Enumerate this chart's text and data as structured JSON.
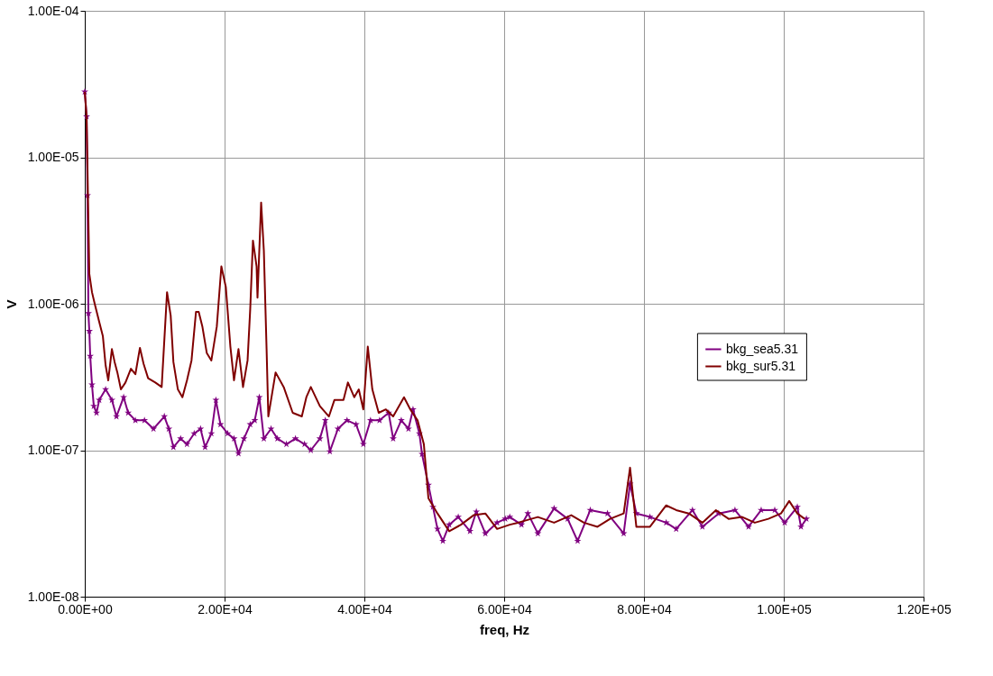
{
  "chart_data": {
    "type": "line",
    "xlabel": "freq, Hz",
    "ylabel": "V",
    "log": "y",
    "grid": true,
    "legend": "right",
    "line_style": "solid",
    "xlim": [
      0,
      120000
    ],
    "xticks": [
      {
        "value": 0,
        "label": "0.00E+00"
      },
      {
        "value": 20000,
        "label": "2.00E+04"
      },
      {
        "value": 40000,
        "label": "4.00E+04"
      },
      {
        "value": 60000,
        "label": "6.00E+04"
      },
      {
        "value": 80000,
        "label": "8.00E+04"
      },
      {
        "value": 100000,
        "label": "1.00E+05"
      },
      {
        "value": 120000,
        "label": "1.20E+05"
      }
    ],
    "ylim": [
      1e-08,
      0.0001
    ],
    "yticks": [
      {
        "value": 1e-08,
        "label": "1.00E-08"
      },
      {
        "value": 1e-07,
        "label": "1.00E-07"
      },
      {
        "value": 1e-06,
        "label": "1.00E-06"
      },
      {
        "value": 1e-05,
        "label": "1.00E-05"
      },
      {
        "value": 0.0001,
        "label": "1.00E-04"
      }
    ],
    "series": [
      {
        "name": "bkg_sea5.31",
        "color": "#800080",
        "marker": "star",
        "x": [
          0,
          260,
          390,
          520,
          650,
          780,
          1030,
          1290,
          1680,
          2070,
          2980,
          3880,
          4530,
          5560,
          6210,
          7240,
          8540,
          9830,
          11380,
          12030,
          12680,
          13710,
          14620,
          15650,
          16560,
          17210,
          18110,
          18760,
          19410,
          20440,
          21350,
          21990,
          22770,
          23670,
          24320,
          24970,
          25620,
          26650,
          27560,
          28850,
          30140,
          31440,
          32340,
          33640,
          34410,
          35060,
          36220,
          37520,
          38810,
          39850,
          40880,
          42170,
          43470,
          44120,
          45280,
          46310,
          46960,
          47870,
          48250,
          49160,
          49810,
          50460,
          51230,
          52140,
          53430,
          55110,
          56020,
          57310,
          58990,
          60160,
          60800,
          62480,
          63390,
          64820,
          67140,
          69080,
          70510,
          72320,
          74780,
          77100,
          78010,
          78910,
          80860,
          83180,
          84610,
          86940,
          88360,
          90690,
          93020,
          94960,
          96770,
          98710,
          100130,
          101940,
          102460,
          103240
        ],
        "values": [
          2.8e-05,
          1.9e-05,
          5.5e-06,
          8.6e-07,
          6.5e-07,
          4.4e-07,
          2.8e-07,
          2e-07,
          1.8e-07,
          2.2e-07,
          2.6e-07,
          2.2e-07,
          1.7e-07,
          2.3e-07,
          1.8e-07,
          1.6e-07,
          1.6e-07,
          1.4e-07,
          1.7e-07,
          1.4e-07,
          1.05e-07,
          1.2e-07,
          1.1e-07,
          1.3e-07,
          1.4e-07,
          1.05e-07,
          1.3e-07,
          2.2e-07,
          1.5e-07,
          1.3e-07,
          1.2e-07,
          9.5e-08,
          1.2e-07,
          1.5e-07,
          1.6e-07,
          2.3e-07,
          1.2e-07,
          1.4e-07,
          1.2e-07,
          1.1e-07,
          1.2e-07,
          1.1e-07,
          1e-07,
          1.2e-07,
          1.6e-07,
          9.8e-08,
          1.4e-07,
          1.6e-07,
          1.5e-07,
          1.1e-07,
          1.6e-07,
          1.6e-07,
          1.8e-07,
          1.2e-07,
          1.6e-07,
          1.4e-07,
          1.9e-07,
          1.3e-07,
          9.4e-08,
          5.8e-08,
          4.1e-08,
          2.9e-08,
          2.4e-08,
          3.1e-08,
          3.5e-08,
          2.8e-08,
          3.8e-08,
          2.7e-08,
          3.2e-08,
          3.4e-08,
          3.5e-08,
          3.1e-08,
          3.7e-08,
          2.7e-08,
          4e-08,
          3.4e-08,
          2.4e-08,
          3.9e-08,
          3.7e-08,
          2.7e-08,
          5.9e-08,
          3.7e-08,
          3.5e-08,
          3.2e-08,
          2.9e-08,
          3.9e-08,
          3e-08,
          3.7e-08,
          3.9e-08,
          3e-08,
          3.9e-08,
          3.9e-08,
          3.2e-08,
          4.1e-08,
          3e-08,
          3.4e-08
        ]
      },
      {
        "name": "bkg_sur5.31",
        "color": "#800000",
        "marker": "none",
        "x": [
          0,
          260,
          650,
          1030,
          1420,
          2070,
          2590,
          2980,
          3360,
          3880,
          4270,
          4660,
          5170,
          5820,
          6600,
          7240,
          7890,
          8410,
          9060,
          10090,
          11000,
          11770,
          12290,
          12680,
          13320,
          13970,
          14620,
          15270,
          15910,
          16300,
          16820,
          17460,
          18110,
          18890,
          19540,
          20180,
          20830,
          21350,
          21990,
          22640,
          23290,
          23670,
          24060,
          24580,
          24710,
          25230,
          25620,
          26010,
          26260,
          27300,
          28460,
          29750,
          31050,
          31700,
          32340,
          33640,
          34930,
          35710,
          37010,
          37650,
          38550,
          39200,
          39850,
          40490,
          41140,
          42050,
          43080,
          44120,
          45670,
          46570,
          47610,
          48510,
          49160,
          50460,
          52140,
          53820,
          55630,
          57310,
          58990,
          60800,
          61970,
          64820,
          67140,
          69600,
          71410,
          73350,
          75160,
          77100,
          78010,
          78910,
          80860,
          83180,
          84610,
          86420,
          88360,
          90300,
          92110,
          94050,
          95860,
          97800,
          99610,
          100780,
          101940,
          102980
        ],
        "values": [
          2.8e-05,
          1.9e-05,
          1.6e-06,
          1.2e-06,
          1e-06,
          7.5e-07,
          6e-07,
          3.8e-07,
          3e-07,
          4.9e-07,
          4e-07,
          3.4e-07,
          2.6e-07,
          2.9e-07,
          3.6e-07,
          3.3e-07,
          5e-07,
          3.9e-07,
          3.1e-07,
          2.9e-07,
          2.7e-07,
          1.2e-06,
          8.3e-07,
          4e-07,
          2.6e-07,
          2.3e-07,
          3e-07,
          4.1e-07,
          8.8e-07,
          8.8e-07,
          7e-07,
          4.6e-07,
          4.1e-07,
          7e-07,
          1.8e-06,
          1.3e-06,
          5.1e-07,
          3e-07,
          4.9e-07,
          2.7e-07,
          4.1e-07,
          9.2e-07,
          2.7e-06,
          1.8e-06,
          1.1e-06,
          4.9e-06,
          2.3e-06,
          4.9e-07,
          1.7e-07,
          3.4e-07,
          2.7e-07,
          1.8e-07,
          1.7e-07,
          2.3e-07,
          2.7e-07,
          2e-07,
          1.7e-07,
          2.2e-07,
          2.2e-07,
          2.9e-07,
          2.3e-07,
          2.6e-07,
          1.9e-07,
          5.1e-07,
          2.6e-07,
          1.8e-07,
          1.9e-07,
          1.7e-07,
          2.3e-07,
          1.9e-07,
          1.6e-07,
          1.1e-07,
          4.7e-08,
          3.7e-08,
          2.8e-08,
          3.1e-08,
          3.6e-08,
          3.7e-08,
          2.9e-08,
          3.1e-08,
          3.2e-08,
          3.5e-08,
          3.2e-08,
          3.6e-08,
          3.2e-08,
          3e-08,
          3.4e-08,
          3.7e-08,
          7.6e-08,
          3e-08,
          3e-08,
          4.2e-08,
          3.9e-08,
          3.7e-08,
          3.2e-08,
          3.9e-08,
          3.4e-08,
          3.5e-08,
          3.2e-08,
          3.4e-08,
          3.7e-08,
          4.5e-08,
          3.7e-08,
          3.4e-08
        ]
      }
    ]
  }
}
